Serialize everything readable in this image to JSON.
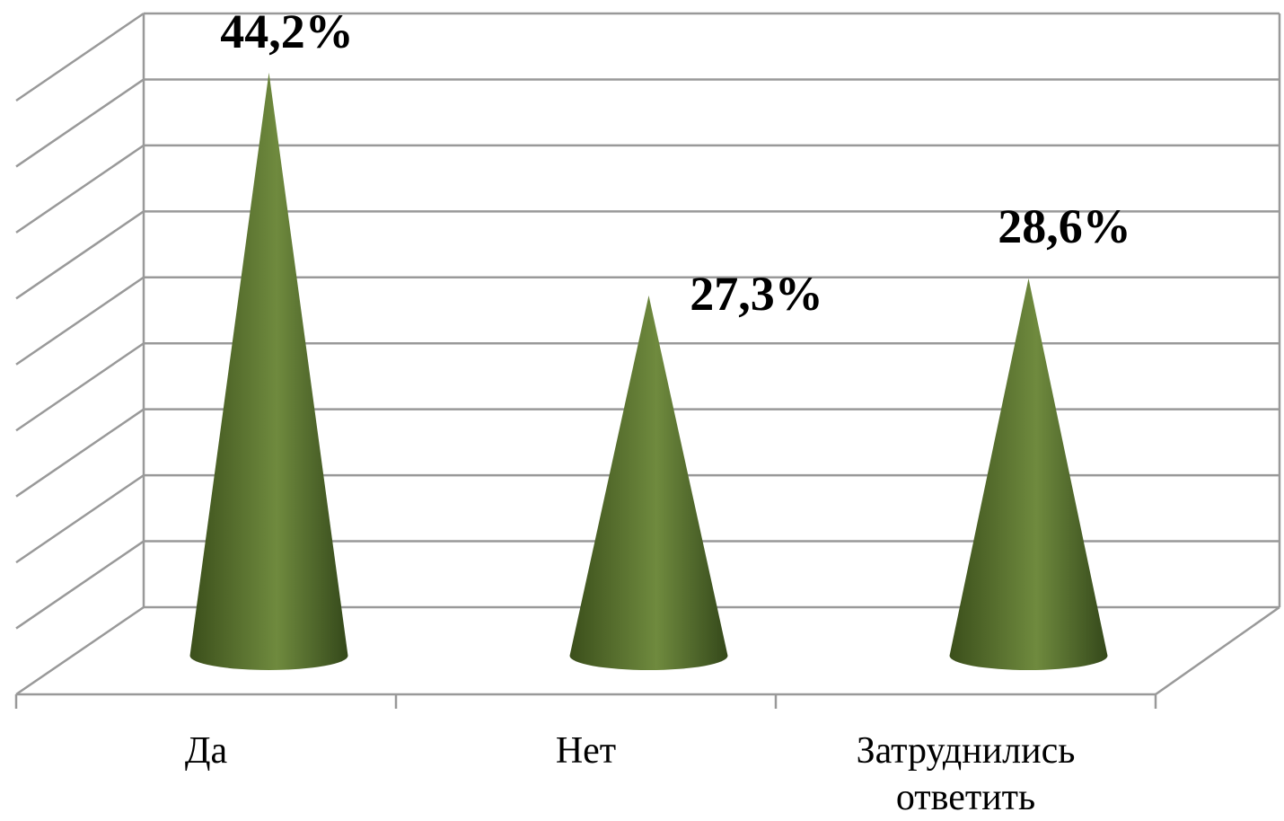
{
  "chart_data": {
    "type": "cone",
    "categories": [
      "Да",
      "Нет",
      "Затруднились ответить"
    ],
    "values": [
      44.2,
      27.3,
      28.6
    ],
    "value_labels": [
      "44,2%",
      "27,3%",
      "28,6%"
    ],
    "color": "#55702c",
    "ylim": [
      0,
      45
    ],
    "yticks": [
      0,
      5,
      10,
      15,
      20,
      25,
      30,
      35,
      40,
      45
    ],
    "grid": true
  }
}
